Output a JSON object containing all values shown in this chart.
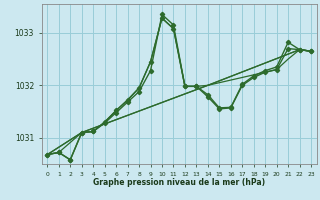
{
  "background_color": "#cce8f0",
  "grid_color": "#99cdd8",
  "line_color": "#2d6b2d",
  "text_color": "#1a3a1a",
  "xlabel": "Graphe pression niveau de la mer (hPa)",
  "ylim": [
    1030.5,
    1033.55
  ],
  "xlim": [
    -0.5,
    23.5
  ],
  "yticks": [
    1031,
    1032,
    1033
  ],
  "xticks": [
    0,
    1,
    2,
    3,
    4,
    5,
    6,
    7,
    8,
    9,
    10,
    11,
    12,
    13,
    14,
    15,
    16,
    17,
    18,
    19,
    20,
    21,
    22,
    23
  ],
  "series": [
    {
      "x": [
        0,
        1,
        2,
        3,
        4,
        5,
        6,
        7,
        8,
        9,
        10,
        11,
        12,
        13,
        14,
        15,
        16,
        17,
        18,
        19,
        20,
        21,
        22,
        23
      ],
      "y": [
        1030.68,
        1030.72,
        1030.58,
        1031.1,
        1031.12,
        1031.28,
        1031.48,
        1031.68,
        1031.88,
        1032.28,
        1033.35,
        1033.15,
        1031.98,
        1031.98,
        1031.78,
        1031.55,
        1031.57,
        1032.0,
        1032.15,
        1032.25,
        1032.3,
        1032.7,
        1032.68,
        1032.65
      ],
      "has_markers": true
    },
    {
      "x": [
        0,
        1,
        2,
        3,
        4,
        5,
        6,
        7,
        8,
        9,
        10,
        11,
        12,
        13,
        14,
        15,
        16,
        17,
        18,
        19,
        20,
        21,
        22,
        23
      ],
      "y": [
        1030.68,
        1030.72,
        1030.58,
        1031.1,
        1031.12,
        1031.3,
        1031.52,
        1031.72,
        1031.95,
        1032.45,
        1033.28,
        1033.08,
        1031.98,
        1031.98,
        1031.82,
        1031.57,
        1031.58,
        1032.02,
        1032.18,
        1032.28,
        1032.35,
        1032.82,
        1032.68,
        1032.65
      ],
      "has_markers": true
    },
    {
      "x": [
        0,
        1,
        3,
        4,
        5,
        6,
        7,
        8,
        9,
        10,
        11,
        12,
        13,
        14,
        22,
        23
      ],
      "y": [
        1030.68,
        1030.72,
        1031.1,
        1031.12,
        1031.3,
        1031.52,
        1031.72,
        1031.95,
        1032.45,
        1033.28,
        1033.08,
        1031.98,
        1031.98,
        1032.0,
        1032.68,
        1032.65
      ],
      "has_markers": false
    },
    {
      "x": [
        0,
        3,
        14,
        22,
        23
      ],
      "y": [
        1030.68,
        1031.1,
        1032.0,
        1032.68,
        1032.65
      ],
      "has_markers": false
    },
    {
      "x": [
        0,
        3,
        14,
        19,
        20,
        21,
        22,
        23
      ],
      "y": [
        1030.68,
        1031.1,
        1032.0,
        1032.25,
        1032.3,
        1032.5,
        1032.68,
        1032.65
      ],
      "has_markers": false
    }
  ]
}
